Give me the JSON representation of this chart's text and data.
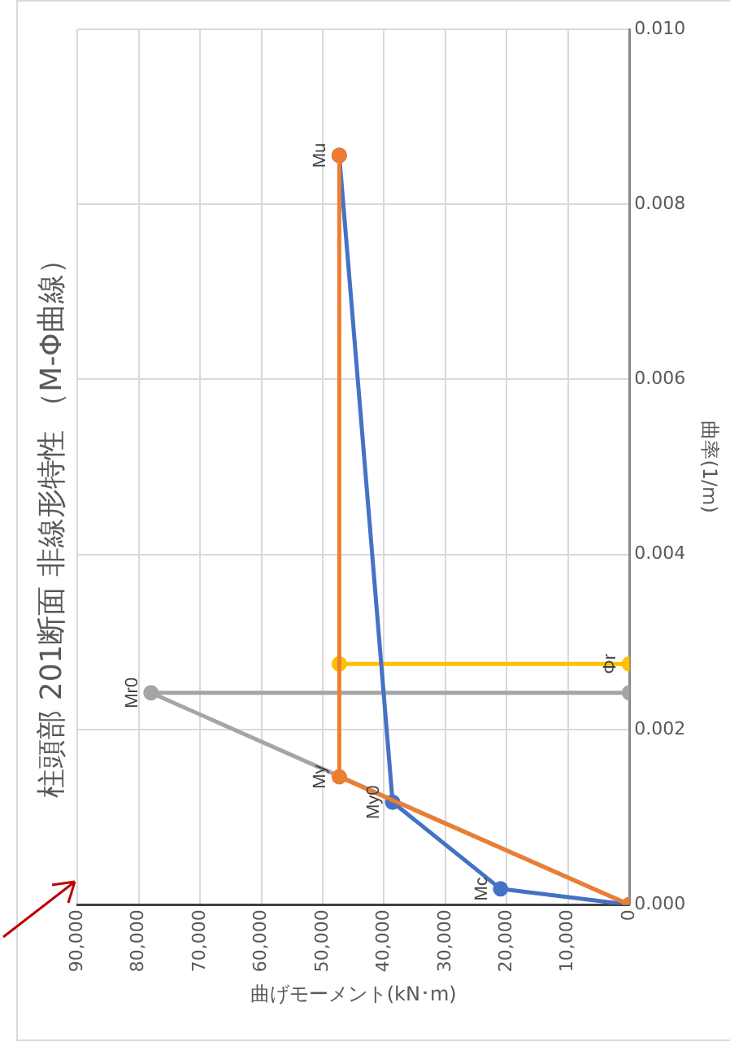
{
  "chart_data": {
    "type": "line",
    "title": "柱頭部 201断面 非線形特性 （M-Φ曲線）",
    "xlabel": "曲げモーメント(kN･m)",
    "ylabel": "曲率(1/m)",
    "series": [
      {
        "color": "#ed7d31",
        "x": [
          0,
          47300,
          47300
        ],
        "values": [
          0,
          0.00146,
          0.00856
        ]
      },
      {
        "color": "#4472c4",
        "x": [
          0,
          21000,
          38600,
          47300
        ],
        "values": [
          0,
          0.00018,
          0.00117,
          0.00856
        ]
      },
      {
        "color": "#a5a5a5",
        "x": [
          0,
          78000,
          0
        ],
        "values": [
          0,
          0.00242,
          0.00242
        ]
      },
      {
        "color": "#ffc000",
        "x": [
          47300,
          0
        ],
        "values": [
          0.00275,
          0.00275
        ]
      }
    ],
    "xlim": [
      90000,
      0
    ],
    "xticks": [
      0,
      {
        "value": 10000,
        "label": "10,000"
      },
      {
        "value": 20000,
        "label": "20,000"
      },
      {
        "value": 30000,
        "label": "30,000"
      },
      {
        "value": 40000,
        "label": "40,000"
      },
      {
        "value": 50000,
        "label": "50,000"
      },
      {
        "value": 60000,
        "label": "60,000"
      },
      {
        "value": 70000,
        "label": "70,000"
      },
      {
        "value": 80000,
        "label": "80,000"
      },
      {
        "value": 90000,
        "label": "90,000"
      }
    ],
    "ylim": [
      0,
      0.01
    ],
    "yticks": [
      {
        "value": 0,
        "label": "0.000"
      },
      {
        "value": 0.002,
        "label": "0.002"
      },
      {
        "value": 0.004,
        "label": "0.004"
      },
      {
        "value": 0.006,
        "label": "0.006"
      },
      {
        "value": 0.008,
        "label": "0.008"
      },
      {
        "value": 0.01,
        "label": "0.010"
      }
    ],
    "annotations": [
      {
        "text": "Mc",
        "x": 21000,
        "y": 0.00018
      },
      {
        "text": "My0",
        "x": 38600,
        "y": 0.00117
      },
      {
        "text": "My",
        "x": 47300,
        "y": 0.00146
      },
      {
        "text": "Mu",
        "x": 47300,
        "y": 0.00856
      },
      {
        "text": "Mr0",
        "x": 78000,
        "y": 0.00242
      },
      {
        "text": "Φr",
        "x": 0,
        "y": 0.00275
      }
    ],
    "grid": true,
    "legend": false,
    "marker": "circle",
    "line_style": "solid"
  }
}
